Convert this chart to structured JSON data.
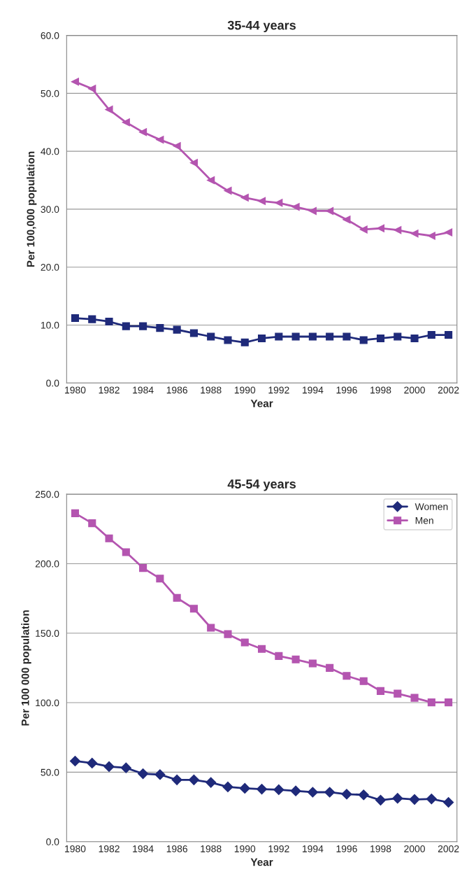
{
  "chart_data": [
    {
      "type": "line",
      "title": "35-44 years",
      "xlabel": "Year",
      "ylabel": "Per 100,000 population",
      "categories": [
        "1980",
        null,
        "1982",
        null,
        "1984",
        null,
        "1986",
        null,
        "1988",
        null,
        "1990",
        null,
        "1992",
        null,
        "1994",
        null,
        "1996",
        null,
        "1998",
        null,
        "2000",
        null,
        "2002"
      ],
      "series": [
        {
          "color": "#1f2a7a",
          "marker": "square",
          "values": [
            11.2,
            11.0,
            10.6,
            9.8,
            9.8,
            9.5,
            9.2,
            8.6,
            8.0,
            7.4,
            7.0,
            7.7,
            8.0,
            8.0,
            8.0,
            8.0,
            8.0,
            7.4,
            7.7,
            8.0,
            7.7,
            8.3,
            8.3
          ]
        },
        {
          "color": "#b455b0",
          "marker": "triangle",
          "values": [
            52.0,
            50.8,
            47.2,
            45.0,
            43.3,
            42.0,
            40.9,
            38.0,
            35.0,
            33.2,
            32.0,
            31.4,
            31.1,
            30.4,
            29.7,
            29.7,
            28.2,
            26.5,
            26.7,
            26.4,
            25.8,
            25.4,
            26.0
          ]
        }
      ],
      "ylim": [
        0,
        60
      ],
      "yticks": [
        {
          "value": 0,
          "label": "0.0"
        },
        {
          "value": 10,
          "label": "10.0"
        },
        {
          "value": 20,
          "label": "20.0"
        },
        {
          "value": 30,
          "label": "30.0"
        },
        {
          "value": 40,
          "label": "40.0"
        },
        {
          "value": 50,
          "label": "50.0"
        },
        {
          "value": 60,
          "label": "60.0"
        }
      ],
      "grid": "y",
      "line_style": "solid"
    },
    {
      "type": "line",
      "title": "45-54 years",
      "xlabel": "Year",
      "ylabel": "Per 100 000 population",
      "categories": [
        "1980",
        null,
        "1982",
        null,
        "1984",
        null,
        "1986",
        null,
        "1988",
        null,
        "1990",
        null,
        "1992",
        null,
        "1994",
        null,
        "1996",
        null,
        "1998",
        null,
        "2000",
        null,
        "2002"
      ],
      "series": [
        {
          "name": "Women",
          "color": "#1f2a7a",
          "marker": "diamond",
          "values": [
            58.0,
            56.5,
            54.0,
            53.1,
            48.9,
            48.3,
            44.5,
            44.5,
            42.6,
            39.4,
            38.4,
            37.8,
            37.4,
            36.5,
            35.6,
            35.6,
            34.2,
            33.7,
            29.9,
            31.2,
            30.4,
            30.8,
            28.3
          ]
        },
        {
          "name": "Men",
          "color": "#b455b0",
          "marker": "square",
          "values": [
            236.3,
            229.1,
            218.2,
            208.3,
            196.9,
            189.3,
            175.4,
            167.6,
            153.9,
            149.3,
            143.3,
            138.7,
            133.6,
            131.1,
            128.2,
            125.0,
            119.3,
            115.5,
            108.4,
            106.5,
            103.5,
            100.2,
            100.2
          ]
        }
      ],
      "ylim": [
        0,
        250
      ],
      "yticks": [
        {
          "value": 0,
          "label": "0.0"
        },
        {
          "value": 50,
          "label": "50.0"
        },
        {
          "value": 100,
          "label": "100.0"
        },
        {
          "value": 150,
          "label": "150.0"
        },
        {
          "value": 200,
          "label": "200.0"
        },
        {
          "value": 250,
          "label": "250.0"
        }
      ],
      "grid": "y",
      "legend": "top right",
      "line_style": "solid"
    }
  ]
}
